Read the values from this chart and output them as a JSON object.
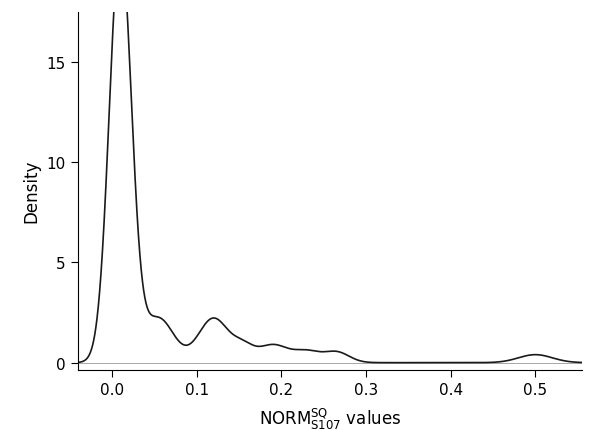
{
  "ylabel": "Density",
  "xlabel_text": "NORM$_{\\mathrm{S107}}^{\\mathrm{SQ}}$ values",
  "xlim": [
    -0.04,
    0.555
  ],
  "ylim": [
    -0.35,
    17.5
  ],
  "xticks": [
    0.0,
    0.1,
    0.2,
    0.3,
    0.4,
    0.5
  ],
  "yticks": [
    0,
    5,
    10,
    15
  ],
  "line_color": "#1a1a1a",
  "line_width": 1.2,
  "bg_color": "#ffffff",
  "kde_x": [],
  "kde_y": [],
  "components": [
    {
      "weight": 0.68,
      "mean": 0.01,
      "std": 0.013
    },
    {
      "weight": 0.1,
      "mean": 0.055,
      "std": 0.018
    },
    {
      "weight": 0.1,
      "mean": 0.12,
      "std": 0.018
    },
    {
      "weight": 0.04,
      "mean": 0.19,
      "std": 0.018
    },
    {
      "weight": 0.02,
      "mean": 0.23,
      "std": 0.015
    },
    {
      "weight": 0.02,
      "mean": 0.265,
      "std": 0.015
    },
    {
      "weight": 0.02,
      "mean": 0.5,
      "std": 0.02
    },
    {
      "weight": 0.02,
      "mean": 0.155,
      "std": 0.012
    }
  ]
}
